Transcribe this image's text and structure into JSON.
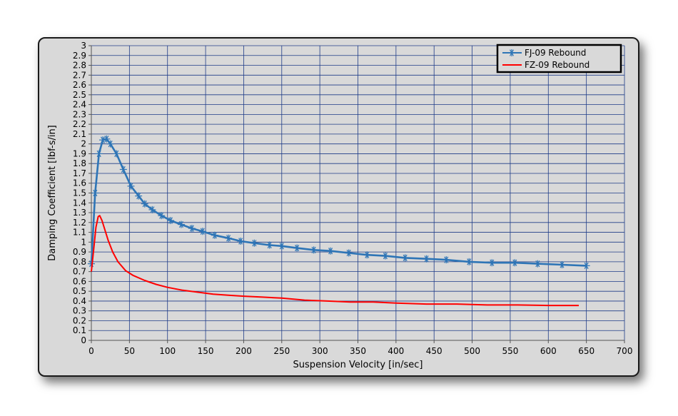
{
  "chart_data": {
    "type": "line",
    "title": "",
    "xlabel": "Suspension Velocity [in/sec]",
    "ylabel": "Damping Coefficient [lbf-s/in]",
    "xlim": [
      0,
      700
    ],
    "ylim": [
      0,
      3
    ],
    "x_ticks": [
      "0",
      "50",
      "100",
      "150",
      "200",
      "250",
      "300",
      "350",
      "400",
      "450",
      "500",
      "550",
      "600",
      "650",
      "700"
    ],
    "y_ticks": [
      "0",
      "0.1",
      "0.2",
      "0.3",
      "0.4",
      "0.5",
      "0.6",
      "0.7",
      "0.8",
      "0.9",
      "1",
      "1.1",
      "1.2",
      "1.3",
      "1.4",
      "1.5",
      "1.6",
      "1.7",
      "1.8",
      "1.9",
      "2",
      "2.1",
      "2.2",
      "2.3",
      "2.4",
      "2.5",
      "2.6",
      "2.7",
      "2.8",
      "2.9",
      "3"
    ],
    "grid": true,
    "legend_position": "top-right",
    "colors": {
      "plot_bg": "#d9d9d9",
      "grid": "#1f3c88"
    },
    "series": [
      {
        "name": "FJ-09 Rebound",
        "color": "#2e75b6",
        "marker": "asterisk",
        "x": [
          0,
          5,
          10,
          15,
          20,
          25,
          33,
          42,
          52,
          62,
          70,
          80,
          92,
          104,
          118,
          132,
          146,
          162,
          180,
          196,
          214,
          234,
          250,
          270,
          292,
          314,
          338,
          362,
          386,
          412,
          440,
          466,
          496,
          526,
          556,
          586,
          618,
          650
        ],
        "y": [
          0.78,
          1.5,
          1.9,
          2.04,
          2.05,
          2.0,
          1.9,
          1.74,
          1.57,
          1.47,
          1.39,
          1.33,
          1.27,
          1.22,
          1.18,
          1.14,
          1.11,
          1.07,
          1.04,
          1.01,
          0.99,
          0.97,
          0.96,
          0.94,
          0.92,
          0.91,
          0.89,
          0.87,
          0.86,
          0.84,
          0.83,
          0.82,
          0.8,
          0.79,
          0.79,
          0.78,
          0.77,
          0.76
        ]
      },
      {
        "name": "FZ-09 Rebound",
        "color": "#ff0000",
        "marker": "none",
        "x": [
          0,
          3,
          6,
          9,
          11,
          14,
          18,
          22,
          28,
          35,
          45,
          55,
          70,
          85,
          100,
          120,
          140,
          160,
          180,
          200,
          225,
          250,
          280,
          310,
          340,
          370,
          400,
          440,
          480,
          520,
          560,
          600,
          640
        ],
        "y": [
          0.7,
          0.92,
          1.15,
          1.26,
          1.27,
          1.22,
          1.12,
          1.02,
          0.9,
          0.8,
          0.71,
          0.66,
          0.61,
          0.57,
          0.54,
          0.51,
          0.49,
          0.47,
          0.46,
          0.45,
          0.44,
          0.43,
          0.41,
          0.4,
          0.39,
          0.39,
          0.38,
          0.37,
          0.37,
          0.36,
          0.36,
          0.355,
          0.355
        ]
      }
    ]
  }
}
